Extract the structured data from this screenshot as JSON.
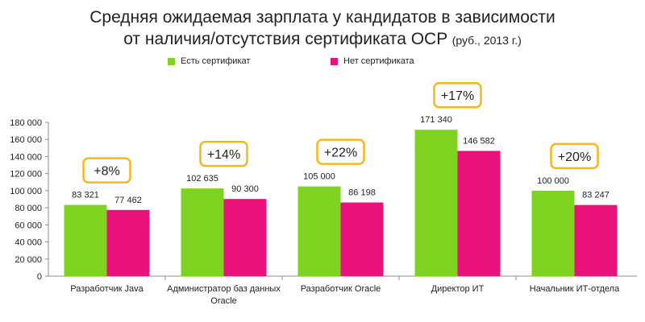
{
  "chart_data": {
    "type": "bar",
    "title_line1": "Средняя ожидаемая зарплата у кандидатов в зависимости",
    "title_line2": "от наличия/отсутствия сертификата OCP",
    "title_suffix": "(руб., 2013 г.)",
    "categories": [
      [
        "Разработчик Java"
      ],
      [
        "Администратор баз данных",
        "Oracle"
      ],
      [
        "Разработчик Oracle"
      ],
      [
        "Директор ИТ"
      ],
      [
        "Начальник ИТ-отдела"
      ]
    ],
    "series": [
      {
        "name": "Есть сертификат",
        "color": "#7ed321",
        "values": [
          83321,
          102635,
          105000,
          171340,
          100000
        ],
        "labels": [
          "83 321",
          "102 635",
          "105 000",
          "171 340",
          "100 000"
        ]
      },
      {
        "name": "Нет сертификата",
        "color": "#e8127a",
        "values": [
          77462,
          90300,
          86198,
          146582,
          83247
        ],
        "labels": [
          "77 462",
          "90 300",
          "86 198",
          "146 582",
          "83 247"
        ]
      }
    ],
    "annotations": [
      "+8%",
      "+14%",
      "+22%",
      "+17%",
      "+20%"
    ],
    "annotation_border_color": "#f5b81c",
    "ylim": [
      0,
      180000
    ],
    "yticks": [
      0,
      20000,
      40000,
      60000,
      80000,
      100000,
      120000,
      140000,
      160000,
      180000
    ],
    "ytick_labels": [
      "0",
      "20 000",
      "40 000",
      "60 000",
      "80 000",
      "100 000",
      "120 000",
      "140 000",
      "160 000",
      "180 000"
    ],
    "grid": false,
    "legend_position": "top"
  }
}
